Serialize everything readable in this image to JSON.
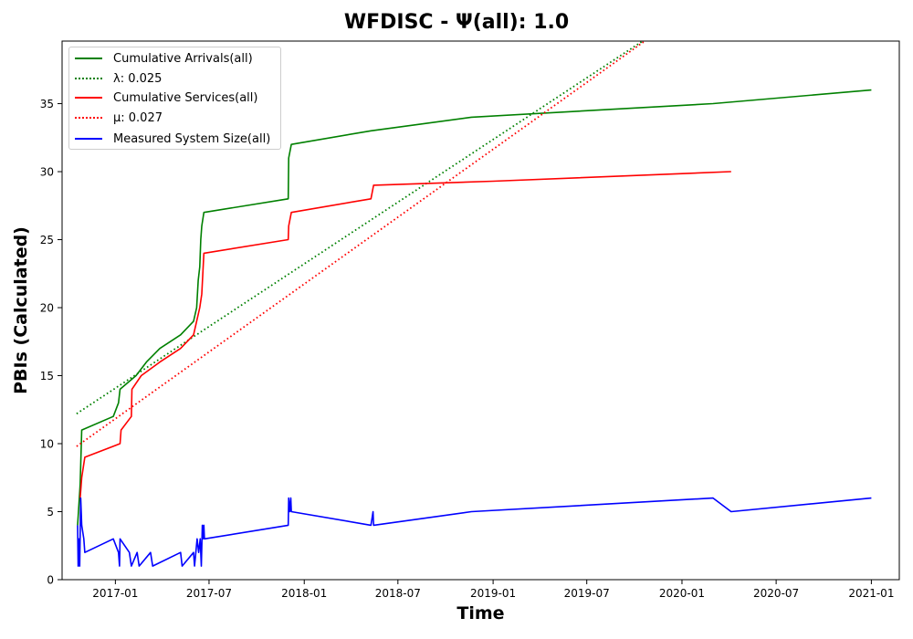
{
  "chart_data": {
    "type": "line",
    "title": "WFDISC -  Ψ(all): 1.0",
    "xlabel": "Time",
    "ylabel": "PBIs (Calculated)",
    "x_ticks": [
      "2017-01",
      "2017-07",
      "2018-01",
      "2018-07",
      "2019-01",
      "2019-07",
      "2020-01",
      "2020-07",
      "2021-01"
    ],
    "y_ticks": [
      0,
      5,
      10,
      15,
      20,
      25,
      30,
      35
    ],
    "xlim": [
      "2016-09-20",
      "2021-02-24"
    ],
    "ylim": [
      0,
      39.6
    ],
    "grid": false,
    "legend_position": "top-left",
    "series": [
      {
        "name": "Cumulative Arrivals(all)",
        "color": "#008000",
        "style": "solid",
        "points": [
          [
            "2016-10-20",
            4
          ],
          [
            "2016-10-25",
            7
          ],
          [
            "2016-10-28",
            11
          ],
          [
            "2016-12-28",
            12
          ],
          [
            "2017-01-07",
            13
          ],
          [
            "2017-01-10",
            14
          ],
          [
            "2017-02-10",
            15
          ],
          [
            "2017-03-02",
            16
          ],
          [
            "2017-03-28",
            17
          ],
          [
            "2017-05-07",
            18
          ],
          [
            "2017-06-01",
            19
          ],
          [
            "2017-06-07",
            20
          ],
          [
            "2017-06-10",
            22
          ],
          [
            "2017-06-13",
            23
          ],
          [
            "2017-06-15",
            25
          ],
          [
            "2017-06-17",
            26
          ],
          [
            "2017-06-21",
            27
          ],
          [
            "2017-12-01",
            28
          ],
          [
            "2017-12-02",
            31
          ],
          [
            "2017-12-07",
            32
          ],
          [
            "2018-05-10",
            33
          ],
          [
            "2018-11-20",
            34
          ],
          [
            "2020-03-01",
            35
          ],
          [
            "2021-01-01",
            36
          ]
        ]
      },
      {
        "name": "λ: 0.025",
        "color": "#008000",
        "style": "dotted",
        "points": [
          [
            "2016-10-18",
            12.2
          ],
          [
            "2019-10-17",
            39.6
          ]
        ]
      },
      {
        "name": "Cumulative Services(all)",
        "color": "#ff0000",
        "style": "solid",
        "points": [
          [
            "2016-10-25",
            6
          ],
          [
            "2016-10-28",
            7.5
          ],
          [
            "2016-11-03",
            9
          ],
          [
            "2017-01-10",
            10
          ],
          [
            "2017-01-12",
            11
          ],
          [
            "2017-02-01",
            12
          ],
          [
            "2017-02-02",
            14
          ],
          [
            "2017-02-20",
            15
          ],
          [
            "2017-03-28",
            16
          ],
          [
            "2017-05-07",
            17
          ],
          [
            "2017-06-01",
            18
          ],
          [
            "2017-06-07",
            19
          ],
          [
            "2017-06-13",
            20
          ],
          [
            "2017-06-17",
            21
          ],
          [
            "2017-06-21",
            24
          ],
          [
            "2017-12-01",
            25
          ],
          [
            "2017-12-02",
            26
          ],
          [
            "2017-12-07",
            27
          ],
          [
            "2018-05-10",
            28
          ],
          [
            "2018-05-15",
            29
          ],
          [
            "2019-01-01",
            29.3
          ],
          [
            "2020-04-05",
            30
          ]
        ]
      },
      {
        "name": "μ: 0.027",
        "color": "#ff0000",
        "style": "dotted",
        "points": [
          [
            "2016-10-18",
            9.8
          ],
          [
            "2019-10-21",
            39.6
          ]
        ]
      },
      {
        "name": "Measured System Size(all)",
        "color": "#0000ff",
        "style": "solid",
        "points": [
          [
            "2016-10-20",
            4
          ],
          [
            "2016-10-21",
            1
          ],
          [
            "2016-10-23",
            3
          ],
          [
            "2016-10-24",
            1
          ],
          [
            "2016-10-26",
            6
          ],
          [
            "2016-10-28",
            4
          ],
          [
            "2016-11-01",
            3
          ],
          [
            "2016-11-03",
            2
          ],
          [
            "2016-12-28",
            3
          ],
          [
            "2017-01-07",
            2
          ],
          [
            "2017-01-09",
            1
          ],
          [
            "2017-01-10",
            3
          ],
          [
            "2017-01-28",
            2
          ],
          [
            "2017-02-01",
            1
          ],
          [
            "2017-02-12",
            2
          ],
          [
            "2017-02-16",
            1
          ],
          [
            "2017-03-10",
            2
          ],
          [
            "2017-03-14",
            1
          ],
          [
            "2017-05-07",
            2
          ],
          [
            "2017-05-10",
            1
          ],
          [
            "2017-06-01",
            2
          ],
          [
            "2017-06-03",
            1
          ],
          [
            "2017-06-08",
            3
          ],
          [
            "2017-06-11",
            2
          ],
          [
            "2017-06-14",
            3
          ],
          [
            "2017-06-16",
            1
          ],
          [
            "2017-06-18",
            4
          ],
          [
            "2017-06-19",
            3
          ],
          [
            "2017-06-21",
            4
          ],
          [
            "2017-06-22",
            3
          ],
          [
            "2017-12-01",
            4
          ],
          [
            "2017-12-02",
            6
          ],
          [
            "2017-12-04",
            5
          ],
          [
            "2017-12-06",
            6
          ],
          [
            "2017-12-07",
            5
          ],
          [
            "2018-05-10",
            4
          ],
          [
            "2018-05-14",
            5
          ],
          [
            "2018-05-15",
            4
          ],
          [
            "2018-11-20",
            5
          ],
          [
            "2020-03-01",
            6
          ],
          [
            "2020-04-05",
            5
          ],
          [
            "2021-01-01",
            6
          ]
        ]
      }
    ]
  }
}
